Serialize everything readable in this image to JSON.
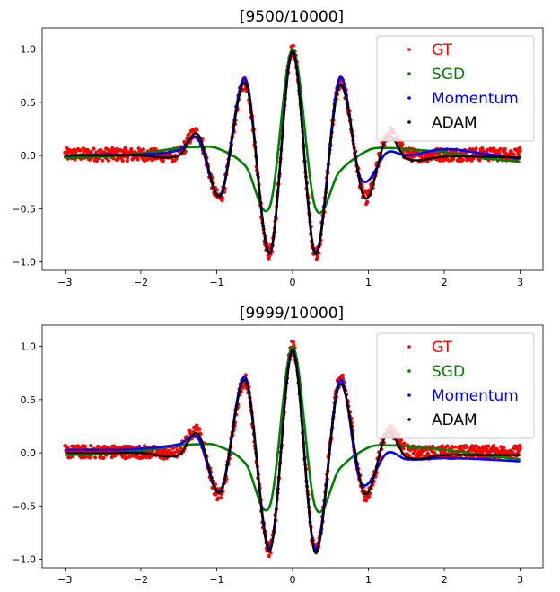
{
  "chart_data": [
    {
      "type": "scatter",
      "title": "[9500/10000]",
      "xlabel": "",
      "ylabel": "",
      "xlim": [
        -3.3,
        3.3
      ],
      "ylim": [
        -1.08,
        1.2
      ],
      "xticks": [
        -3,
        -2,
        -1,
        0,
        1,
        2,
        3
      ],
      "xtick_labels": [
        "−3",
        "−2",
        "−1",
        "0",
        "1",
        "2",
        "3"
      ],
      "yticks": [
        -1.0,
        -0.5,
        0.0,
        0.5,
        1.0
      ],
      "ytick_labels": [
        "−1.0",
        "−0.5",
        "0.0",
        "0.5",
        "1.0"
      ],
      "legend_position": "upper-right",
      "series": [
        {
          "name": "GT",
          "color": "#ff0000",
          "x": [
            -3,
            -2.5,
            -2,
            -1.5,
            -1.25,
            -0.95,
            -0.62,
            -0.3,
            0,
            0.3,
            0.62,
            0.95,
            1.25,
            1.5,
            2,
            2.5,
            3
          ],
          "y": [
            0.01,
            0.01,
            0.01,
            0.02,
            0.2,
            -0.39,
            0.68,
            -0.92,
            1.0,
            -0.92,
            0.68,
            -0.39,
            0.2,
            0.02,
            0.01,
            0.01,
            0.01
          ]
        },
        {
          "name": "SGD",
          "color": "#008000",
          "x": [
            -3,
            -2.5,
            -2,
            -1.5,
            -1.25,
            -1,
            -0.62,
            -0.3,
            0,
            0.3,
            0.62,
            1,
            1.25,
            1.5,
            2,
            2.5,
            3
          ],
          "y": [
            -0.02,
            -0.01,
            0.02,
            0.07,
            0.08,
            0.07,
            -0.1,
            -0.48,
            1.0,
            -0.49,
            -0.15,
            0.05,
            0.07,
            0.06,
            0.03,
            -0.02,
            -0.06
          ]
        },
        {
          "name": "Momentum",
          "color": "#0000ff",
          "x": [
            -3,
            -2.5,
            -2,
            -1.5,
            -1.25,
            -0.95,
            -0.62,
            -0.3,
            0,
            0.3,
            0.62,
            0.9,
            1.25,
            1.5,
            2,
            2.5,
            3
          ],
          "y": [
            0.0,
            0.01,
            0.01,
            0.05,
            0.16,
            -0.37,
            0.72,
            -0.92,
            0.98,
            -0.92,
            0.73,
            -0.22,
            0.03,
            0.0,
            0.06,
            0.02,
            -0.03
          ]
        },
        {
          "name": "ADAM",
          "color": "#000000",
          "x": [
            -3,
            -2.5,
            -2,
            -1.5,
            -1.25,
            -0.95,
            -0.62,
            -0.3,
            0,
            0.3,
            0.62,
            0.95,
            1.25,
            1.5,
            2,
            2.5,
            3
          ],
          "y": [
            0.0,
            0.0,
            0.0,
            0.0,
            0.2,
            -0.38,
            0.68,
            -0.92,
            0.98,
            -0.93,
            0.66,
            -0.4,
            0.18,
            -0.03,
            -0.01,
            -0.01,
            -0.02
          ]
        }
      ]
    },
    {
      "type": "scatter",
      "title": "[9999/10000]",
      "xlabel": "",
      "ylabel": "",
      "xlim": [
        -3.3,
        3.3
      ],
      "ylim": [
        -1.08,
        1.2
      ],
      "xticks": [
        -3,
        -2,
        -1,
        0,
        1,
        2,
        3
      ],
      "xtick_labels": [
        "−3",
        "−2",
        "−1",
        "0",
        "1",
        "2",
        "3"
      ],
      "yticks": [
        -1.0,
        -0.5,
        0.0,
        0.5,
        1.0
      ],
      "ytick_labels": [
        "−1.0",
        "−0.5",
        "0.0",
        "0.5",
        "1.0"
      ],
      "legend_position": "upper-right",
      "series": [
        {
          "name": "GT",
          "color": "#ff0000",
          "x": [
            -3,
            -2.5,
            -2,
            -1.5,
            -1.25,
            -0.95,
            -0.62,
            -0.3,
            0,
            0.3,
            0.62,
            0.95,
            1.25,
            1.5,
            2,
            2.5,
            3
          ],
          "y": [
            0.01,
            0.01,
            0.01,
            0.02,
            0.2,
            -0.39,
            0.68,
            -0.92,
            1.0,
            -0.92,
            0.68,
            -0.39,
            0.2,
            0.02,
            0.01,
            0.01,
            0.01
          ]
        },
        {
          "name": "SGD",
          "color": "#008000",
          "x": [
            -3,
            -2.5,
            -2,
            -1.5,
            -1.25,
            -1,
            -0.62,
            -0.3,
            0,
            0.3,
            0.62,
            1,
            1.25,
            1.5,
            2,
            2.5,
            3
          ],
          "y": [
            -0.02,
            -0.01,
            0.02,
            0.07,
            0.08,
            0.07,
            -0.1,
            -0.5,
            1.0,
            -0.51,
            -0.15,
            0.05,
            0.07,
            0.06,
            0.03,
            -0.02,
            -0.06
          ]
        },
        {
          "name": "Momentum",
          "color": "#0000ff",
          "x": [
            -3,
            -2.5,
            -2,
            -1.5,
            -1.25,
            -0.95,
            -0.62,
            -0.3,
            0,
            0.3,
            0.62,
            0.9,
            1.25,
            1.5,
            2,
            2.5,
            3
          ],
          "y": [
            0.03,
            0.03,
            0.04,
            0.08,
            0.14,
            -0.36,
            0.71,
            -0.9,
            0.96,
            -0.91,
            0.68,
            -0.28,
            0.0,
            -0.06,
            -0.05,
            -0.06,
            -0.08
          ]
        },
        {
          "name": "ADAM",
          "color": "#000000",
          "x": [
            -3,
            -2.5,
            -2,
            -1.5,
            -1.25,
            -0.95,
            -0.62,
            -0.3,
            0,
            0.3,
            0.62,
            0.95,
            1.25,
            1.5,
            2,
            2.5,
            3
          ],
          "y": [
            0.0,
            0.0,
            0.0,
            -0.02,
            0.18,
            -0.37,
            0.68,
            -0.92,
            0.97,
            -0.94,
            0.64,
            -0.38,
            0.19,
            -0.04,
            -0.02,
            -0.02,
            -0.02
          ]
        }
      ]
    }
  ]
}
